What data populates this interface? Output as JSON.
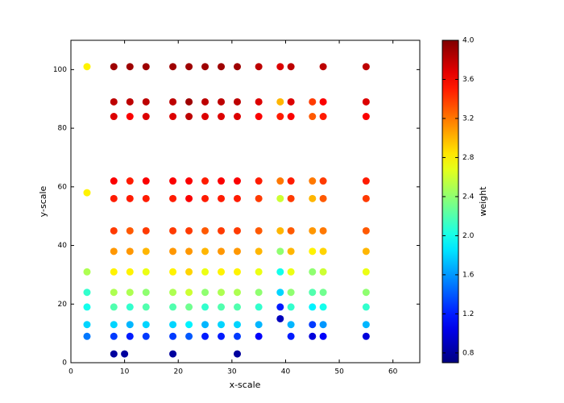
{
  "chart_data": {
    "type": "scatter",
    "xlabel": "x-scale",
    "ylabel": "y-scale",
    "colorbar_label": "weight",
    "colormap": "jet",
    "xlim": [
      0,
      65
    ],
    "xticks": [
      0,
      10,
      20,
      30,
      40,
      50,
      60
    ],
    "ylim": [
      0,
      110
    ],
    "yticks": [
      0,
      20,
      40,
      60,
      80,
      100
    ],
    "clim": [
      0.7,
      4.0
    ],
    "cticks": [
      0.8,
      1.2,
      1.6,
      {
        "value": 2,
        "label": "2.0"
      },
      2.4,
      2.8,
      3.2,
      3.6,
      {
        "value": 4,
        "label": "4.0"
      }
    ],
    "x": [
      3,
      8,
      11,
      14,
      19,
      22,
      25,
      28,
      31,
      35,
      39,
      41,
      47,
      55,
      8,
      11,
      14,
      19,
      22,
      25,
      28,
      31,
      35,
      39,
      41,
      45,
      47,
      55,
      8,
      11,
      14,
      19,
      22,
      25,
      28,
      31,
      35,
      39,
      41,
      45,
      47,
      55,
      8,
      11,
      14,
      19,
      22,
      25,
      28,
      31,
      35,
      39,
      41,
      45,
      47,
      55,
      3,
      8,
      11,
      14,
      19,
      22,
      25,
      28,
      31,
      35,
      39,
      41,
      45,
      47,
      55,
      8,
      11,
      14,
      19,
      22,
      25,
      28,
      31,
      35,
      39,
      41,
      45,
      47,
      55,
      8,
      11,
      14,
      19,
      22,
      25,
      28,
      31,
      35,
      39,
      41,
      45,
      47,
      55,
      3,
      8,
      11,
      14,
      19,
      22,
      25,
      28,
      31,
      35,
      39,
      41,
      45,
      47,
      55,
      3,
      8,
      11,
      14,
      19,
      22,
      25,
      28,
      31,
      35,
      39,
      41,
      45,
      47,
      55,
      3,
      8,
      11,
      14,
      19,
      22,
      25,
      28,
      31,
      35,
      39,
      41,
      45,
      47,
      55,
      3,
      8,
      11,
      14,
      19,
      22,
      25,
      28,
      31,
      35,
      41,
      45,
      47,
      55,
      3,
      8,
      11,
      14,
      19,
      22,
      25,
      28,
      31,
      35,
      39,
      41,
      45,
      47,
      55,
      8,
      10,
      19,
      31
    ],
    "values": [
      101,
      101,
      101,
      101,
      101,
      101,
      101,
      101,
      101,
      101,
      101,
      101,
      101,
      101,
      89,
      89,
      89,
      89,
      89,
      89,
      89,
      89,
      89,
      89,
      89,
      89,
      89,
      89,
      84,
      84,
      84,
      84,
      84,
      84,
      84,
      84,
      84,
      84,
      84,
      84,
      84,
      84,
      62,
      62,
      62,
      62,
      62,
      62,
      62,
      62,
      62,
      62,
      62,
      62,
      62,
      62,
      58,
      56,
      56,
      56,
      56,
      56,
      56,
      56,
      56,
      56,
      56,
      56,
      56,
      56,
      56,
      45,
      45,
      45,
      45,
      45,
      45,
      45,
      45,
      45,
      45,
      45,
      45,
      45,
      45,
      38,
      38,
      38,
      38,
      38,
      38,
      38,
      38,
      38,
      38,
      38,
      38,
      38,
      38,
      31,
      31,
      31,
      31,
      31,
      31,
      31,
      31,
      31,
      31,
      31,
      31,
      31,
      31,
      31,
      24,
      24,
      24,
      24,
      24,
      24,
      24,
      24,
      24,
      24,
      24,
      24,
      24,
      24,
      24,
      19,
      19,
      19,
      19,
      19,
      19,
      19,
      19,
      19,
      19,
      19,
      19,
      19,
      19,
      19,
      13,
      13,
      13,
      13,
      13,
      13,
      13,
      13,
      13,
      13,
      13,
      13,
      13,
      13,
      9,
      9,
      9,
      9,
      9,
      9,
      9,
      9,
      9,
      9,
      15,
      9,
      9,
      9,
      9,
      3,
      3,
      3,
      3
    ],
    "weights": [
      2.8,
      3.9,
      3.9,
      3.9,
      3.9,
      3.9,
      3.9,
      3.9,
      3.9,
      3.8,
      3.7,
      3.8,
      3.8,
      3.8,
      3.8,
      3.8,
      3.8,
      3.8,
      3.9,
      3.8,
      3.8,
      3.8,
      3.7,
      3.0,
      3.7,
      3.4,
      3.6,
      3.7,
      3.7,
      3.6,
      3.7,
      3.7,
      3.8,
      3.7,
      3.7,
      3.7,
      3.6,
      3.5,
      3.6,
      3.3,
      3.5,
      3.6,
      3.6,
      3.5,
      3.6,
      3.6,
      3.6,
      3.5,
      3.6,
      3.6,
      3.5,
      3.2,
      3.5,
      3.2,
      3.4,
      3.5,
      2.8,
      3.5,
      3.5,
      3.5,
      3.5,
      3.6,
      3.5,
      3.5,
      3.5,
      3.4,
      2.6,
      3.4,
      3.0,
      3.3,
      3.4,
      3.4,
      3.3,
      3.4,
      3.4,
      3.4,
      3.3,
      3.4,
      3.4,
      3.3,
      3.0,
      3.3,
      3.1,
      3.2,
      3.3,
      3.1,
      3.1,
      3.0,
      3.1,
      3.1,
      3.0,
      3.1,
      3.1,
      3.0,
      2.4,
      3.0,
      2.8,
      2.9,
      3.0,
      2.5,
      2.8,
      2.8,
      2.7,
      2.8,
      2.9,
      2.7,
      2.8,
      2.8,
      2.7,
      2.0,
      2.7,
      2.4,
      2.6,
      2.7,
      2.1,
      2.5,
      2.5,
      2.4,
      2.5,
      2.6,
      2.4,
      2.5,
      2.5,
      2.4,
      1.8,
      2.4,
      2.2,
      2.3,
      2.4,
      2.0,
      2.2,
      2.1,
      2.2,
      2.2,
      2.3,
      2.1,
      2.2,
      2.2,
      2.1,
      1.2,
      2.1,
      1.9,
      2.0,
      2.1,
      1.8,
      1.8,
      1.7,
      1.8,
      1.8,
      1.9,
      1.7,
      1.8,
      1.8,
      1.7,
      1.7,
      1.3,
      1.6,
      1.7,
      1.5,
      1.3,
      1.2,
      1.3,
      1.3,
      1.4,
      1.2,
      1.2,
      1.3,
      1.1,
      0.9,
      1.2,
      1.0,
      1.1,
      1.0,
      0.8,
      0.8,
      0.8,
      0.8
    ]
  }
}
